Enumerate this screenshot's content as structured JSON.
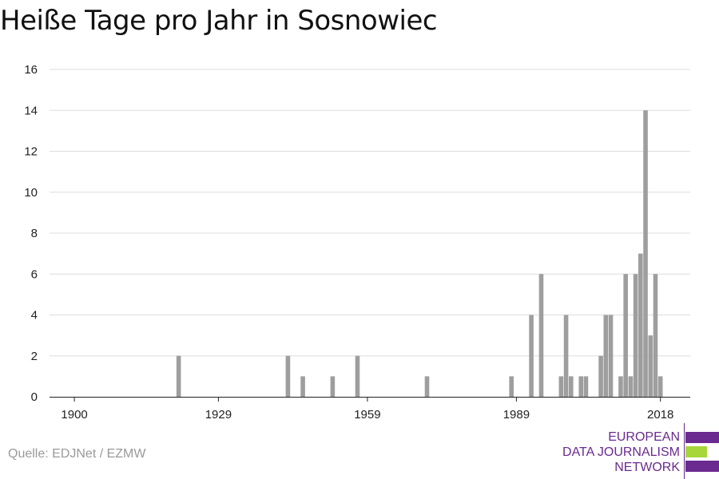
{
  "title": "Heiße Tage pro Jahr in Sosnowiec",
  "source": "Quelle: EDJNet / EZMW",
  "logo": {
    "lines": [
      "EUROPEAN",
      "DATA JOURNALISM",
      "NETWORK"
    ],
    "colors": {
      "purple": "#6a2a8f",
      "green": "#a6d63a"
    }
  },
  "chart_data": {
    "type": "bar",
    "title": "Heiße Tage pro Jahr in Sosnowiec",
    "xlabel": "",
    "ylabel": "",
    "x_ticks": [
      1900,
      1929,
      1959,
      1989,
      2018
    ],
    "y_ticks": [
      0,
      2,
      4,
      6,
      8,
      10,
      12,
      14,
      16
    ],
    "xlim": [
      1895,
      2024
    ],
    "ylim": [
      0,
      16
    ],
    "grid": true,
    "bar_color": "#9e9e9e",
    "x": [
      1921,
      1943,
      1946,
      1952,
      1957,
      1971,
      1988,
      1992,
      1994,
      1998,
      1999,
      2000,
      2002,
      2003,
      2006,
      2007,
      2008,
      2010,
      2011,
      2012,
      2013,
      2014,
      2015,
      2016,
      2017,
      2018
    ],
    "values": [
      2,
      2,
      1,
      1,
      2,
      1,
      1,
      4,
      6,
      1,
      4,
      1,
      1,
      1,
      2,
      4,
      4,
      1,
      6,
      1,
      6,
      7,
      14,
      3,
      6,
      1
    ]
  }
}
